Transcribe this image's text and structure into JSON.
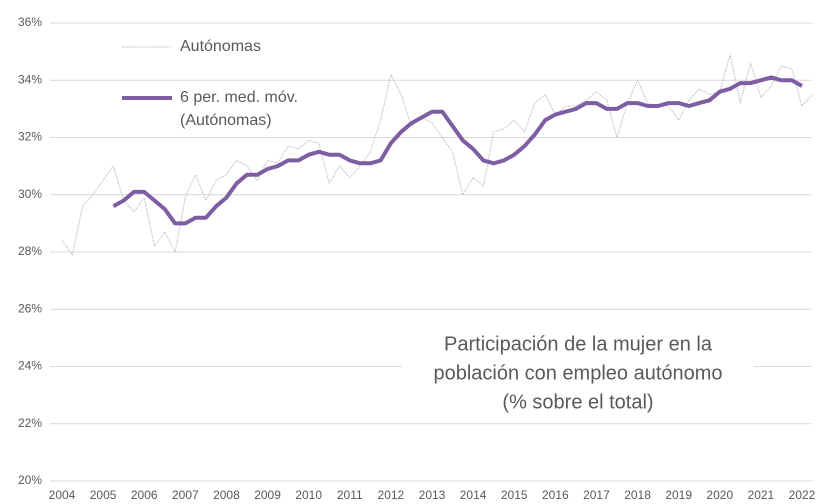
{
  "chart_data": {
    "type": "line",
    "annotation": [
      "Participación de la mujer en la",
      "población con empleo autónomo",
      "(% sobre el total)"
    ],
    "x": [
      2004,
      2004.25,
      2004.5,
      2004.75,
      2005,
      2005.25,
      2005.5,
      2005.75,
      2006,
      2006.25,
      2006.5,
      2006.75,
      2007,
      2007.25,
      2007.5,
      2007.75,
      2008,
      2008.25,
      2008.5,
      2008.75,
      2009,
      2009.25,
      2009.5,
      2009.75,
      2010,
      2010.25,
      2010.5,
      2010.75,
      2011,
      2011.25,
      2011.5,
      2011.75,
      2012,
      2012.25,
      2012.5,
      2012.75,
      2013,
      2013.25,
      2013.5,
      2013.75,
      2014,
      2014.25,
      2014.5,
      2014.75,
      2015,
      2015.25,
      2015.5,
      2015.75,
      2016,
      2016.25,
      2016.5,
      2016.75,
      2017,
      2017.25,
      2017.5,
      2017.75,
      2018,
      2018.25,
      2018.5,
      2018.75,
      2019,
      2019.25,
      2019.5,
      2019.75,
      2020,
      2020.25,
      2020.5,
      2020.75,
      2021,
      2021.25,
      2021.5,
      2021.75,
      2022,
      2022.25
    ],
    "series": [
      {
        "name": "Autónomas",
        "color": "#bdbdbd",
        "values": [
          28.4,
          27.9,
          29.6,
          30.0,
          30.5,
          31.0,
          29.8,
          29.4,
          29.9,
          28.2,
          28.7,
          28.0,
          29.9,
          30.7,
          29.8,
          30.5,
          30.7,
          31.2,
          31.0,
          30.5,
          31.2,
          31.1,
          31.7,
          31.6,
          31.9,
          31.8,
          30.4,
          31.0,
          30.6,
          31.0,
          31.5,
          32.6,
          34.2,
          33.5,
          32.4,
          32.7,
          32.5,
          32.0,
          31.5,
          30.0,
          30.6,
          30.3,
          32.2,
          32.3,
          32.6,
          32.2,
          33.2,
          33.5,
          32.8,
          33.1,
          33.1,
          33.3,
          33.6,
          33.3,
          32.0,
          33.2,
          34.0,
          33.2,
          33.1,
          33.1,
          32.6,
          33.3,
          33.7,
          33.5,
          33.6,
          34.9,
          33.2,
          34.6,
          33.4,
          33.8,
          34.5,
          34.4,
          33.1,
          33.5
        ]
      },
      {
        "name": "6 per. med. móv. (Autónomas)",
        "color": "#7d5ea2",
        "values": [
          null,
          null,
          null,
          null,
          null,
          29.6,
          29.8,
          30.1,
          30.1,
          29.8,
          29.5,
          29.0,
          29.0,
          29.2,
          29.2,
          29.6,
          29.9,
          30.4,
          30.7,
          30.7,
          30.9,
          31.0,
          31.2,
          31.2,
          31.4,
          31.5,
          31.4,
          31.4,
          31.2,
          31.1,
          31.1,
          31.2,
          31.8,
          32.2,
          32.5,
          32.7,
          32.9,
          32.9,
          32.4,
          31.9,
          31.6,
          31.2,
          31.1,
          31.2,
          31.4,
          31.7,
          32.1,
          32.6,
          32.8,
          32.9,
          33.0,
          33.2,
          33.2,
          33.0,
          33.0,
          33.2,
          33.2,
          33.1,
          33.1,
          33.2,
          33.2,
          33.1,
          33.2,
          33.3,
          33.6,
          33.7,
          33.9,
          33.9,
          34.0,
          34.1,
          34.0,
          34.0,
          33.8,
          null
        ]
      }
    ],
    "xlim": [
      2004,
      2022
    ],
    "xticks": [
      2004,
      2005,
      2006,
      2007,
      2008,
      2009,
      2010,
      2011,
      2012,
      2013,
      2014,
      2015,
      2016,
      2017,
      2018,
      2019,
      2020,
      2021,
      2022
    ],
    "ylim": [
      20,
      36
    ],
    "yticks": [
      {
        "value": 20,
        "label": "20%"
      },
      {
        "value": 22,
        "label": "22%"
      },
      {
        "value": 24,
        "label": "24%"
      },
      {
        "value": 26,
        "label": "26%"
      },
      {
        "value": 28,
        "label": "28%"
      },
      {
        "value": 30,
        "label": "30%"
      },
      {
        "value": 32,
        "label": "32%"
      },
      {
        "value": 34,
        "label": "34%"
      },
      {
        "value": 36,
        "label": "36%"
      }
    ],
    "grid": true
  }
}
